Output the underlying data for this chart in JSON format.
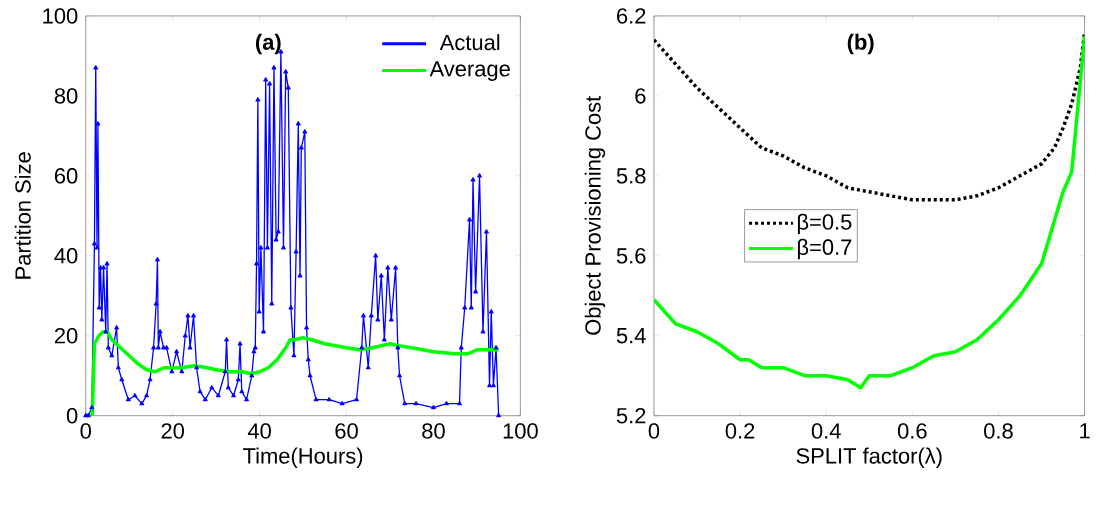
{
  "chart_data": [
    {
      "type": "line",
      "title": "(a)",
      "xlabel": "Time(Hours)",
      "ylabel": "Partition Size",
      "xlim": [
        0,
        100
      ],
      "ylim": [
        0,
        100
      ],
      "xticks": [
        0,
        20,
        40,
        60,
        80,
        100
      ],
      "yticks": [
        0,
        20,
        40,
        60,
        80,
        100
      ],
      "legend": "top right",
      "series": [
        {
          "name": "Actual",
          "color": "#0000ff",
          "marker": "triangle",
          "x": [
            0,
            0.6,
            1.4,
            2,
            2.3,
            2.6,
            2.8,
            3.1,
            3.4,
            3.7,
            4.1,
            4.6,
            4.9,
            5.2,
            6,
            7.1,
            7.5,
            8.3,
            9.8,
            11.3,
            12.9,
            14,
            14.8,
            15.6,
            16.2,
            16.5,
            16.7,
            17.1,
            17.9,
            18.6,
            19.8,
            20.9,
            22.1,
            22.9,
            23.5,
            24,
            24.8,
            25.5,
            26.3,
            27.5,
            29,
            30.5,
            32.1,
            32.4,
            32.8,
            34,
            35.1,
            35.5,
            35.9,
            37,
            38.2,
            38.7,
            39,
            39.3,
            39.6,
            39.9,
            40.3,
            40.9,
            41.4,
            41.8,
            42.3,
            42.8,
            43.3,
            43.8,
            44.3,
            44.9,
            45.5,
            46,
            46.6,
            47.2,
            47.9,
            48.4,
            48.9,
            49.3,
            49.6,
            50.4,
            50.8,
            51.2,
            51.6,
            53,
            56,
            59,
            62.3,
            63.5,
            63.9,
            65,
            65.7,
            66.7,
            67.2,
            68,
            68.7,
            69.5,
            70.3,
            71.3,
            71.8,
            72.2,
            73.4,
            76,
            80,
            83,
            86,
            86.4,
            87.2,
            88.3,
            88.7,
            89.1,
            89.7,
            90.6,
            91.4,
            92.2,
            92.9,
            93.3,
            93.8,
            94.4,
            95
          ],
          "values": [
            0,
            0,
            2,
            43,
            87,
            42,
            73,
            27,
            37,
            24,
            37,
            21,
            38,
            17,
            15,
            22,
            12,
            9,
            4,
            5,
            3,
            5,
            9,
            17,
            28,
            39,
            17,
            21,
            17,
            17,
            11,
            16,
            11,
            20,
            25,
            17,
            25,
            12,
            6,
            4,
            7,
            5,
            11,
            19,
            7,
            5,
            9,
            18,
            6,
            4,
            10,
            16,
            17,
            38,
            79,
            26,
            42,
            21,
            84,
            42,
            83,
            28,
            87,
            44,
            46,
            91,
            42,
            86,
            82,
            27,
            15,
            41,
            73,
            35,
            67,
            71,
            22,
            14,
            10,
            4,
            4,
            3,
            4,
            17,
            25,
            12,
            25,
            40,
            24,
            35,
            19,
            37,
            24,
            37,
            17,
            10,
            3,
            3,
            2,
            3,
            3,
            17,
            27,
            49,
            27,
            59,
            31,
            60,
            21,
            46,
            7.5,
            26,
            7.5,
            17,
            0
          ]
        },
        {
          "name": "Average",
          "color": "#00ff00",
          "marker": "none",
          "x": [
            0,
            1.5,
            2,
            3,
            4,
            5,
            6,
            8,
            10,
            12,
            14,
            16,
            18,
            20,
            22,
            25,
            28,
            30,
            33,
            36,
            38,
            40,
            42,
            44,
            46,
            47,
            48,
            50,
            52,
            55,
            60,
            63,
            66,
            68,
            70,
            72,
            75,
            80,
            85,
            88,
            90,
            95
          ],
          "values": [
            0,
            0,
            18,
            20,
            21,
            21,
            19,
            17,
            15,
            13,
            11.5,
            11,
            12,
            12,
            12,
            12.5,
            12,
            11.5,
            11,
            11,
            10.5,
            11,
            12,
            14,
            17,
            19,
            19,
            19.5,
            19,
            18,
            17,
            16.5,
            17,
            17.5,
            18,
            17.5,
            17,
            16,
            15.5,
            15.5,
            16.5,
            16.5
          ]
        }
      ]
    },
    {
      "type": "line",
      "title": "(b)",
      "xlabel": "SPLIT factor(λ)",
      "ylabel": "Object Provisioning Cost",
      "xlim": [
        0,
        1
      ],
      "ylim": [
        5.2,
        6.2
      ],
      "xticks": [
        0,
        0.2,
        0.4,
        0.6,
        0.8,
        1
      ],
      "yticks": [
        5.2,
        5.4,
        5.6,
        5.8,
        6,
        6.2
      ],
      "legend": "left",
      "x": [
        0,
        0.05,
        0.1,
        0.15,
        0.2,
        0.25,
        0.3,
        0.35,
        0.4,
        0.45,
        0.5,
        0.55,
        0.6,
        0.65,
        0.7,
        0.75,
        0.8,
        0.85,
        0.9,
        0.93,
        0.95,
        0.97,
        0.99,
        1
      ],
      "series": [
        {
          "name": "β=0.5",
          "color": "#000000",
          "line_style": "dotted",
          "values": [
            6.14,
            6.08,
            6.02,
            5.97,
            5.92,
            5.87,
            5.85,
            5.82,
            5.8,
            5.77,
            5.76,
            5.75,
            5.74,
            5.74,
            5.74,
            5.75,
            5.77,
            5.8,
            5.83,
            5.87,
            5.92,
            5.98,
            6.07,
            6.16
          ]
        },
        {
          "name": "β=0.7",
          "color": "#00ff00",
          "line_style": "solid",
          "x": [
            0,
            0.05,
            0.1,
            0.15,
            0.2,
            0.22,
            0.25,
            0.3,
            0.35,
            0.4,
            0.45,
            0.48,
            0.5,
            0.55,
            0.6,
            0.65,
            0.7,
            0.75,
            0.8,
            0.85,
            0.9,
            0.95,
            0.97,
            1
          ],
          "values": [
            5.49,
            5.43,
            5.41,
            5.38,
            5.34,
            5.34,
            5.32,
            5.32,
            5.3,
            5.3,
            5.29,
            5.27,
            5.3,
            5.3,
            5.32,
            5.35,
            5.36,
            5.39,
            5.44,
            5.5,
            5.58,
            5.76,
            5.81,
            6.15
          ]
        }
      ]
    }
  ]
}
